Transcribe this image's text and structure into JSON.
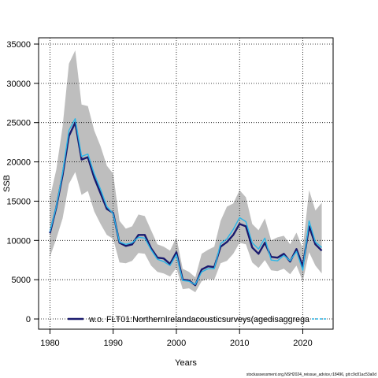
{
  "chart_data": {
    "type": "line",
    "title": "",
    "xlabel": "Years",
    "ylabel": "SSB",
    "xlim": [
      1978.2,
      2024.8
    ],
    "ylim": [
      -1300,
      35800
    ],
    "x_ticks": [
      1980,
      1990,
      2000,
      2010,
      2020
    ],
    "y_ticks": [
      0,
      5000,
      10000,
      15000,
      20000,
      25000,
      30000,
      35000
    ],
    "grid": true,
    "legend_position": "bottom",
    "legend_label": "w.o. FLT01:NorthernIrelandacousticsurveys(agedisaggrega",
    "footnote": "stockassessment.org,NSH2024_reissue_advice,r18496, git:c9c81ac53a0d",
    "colors": {
      "series_main": "#1a1a6e",
      "series_alt": "#29b6e8",
      "band": "#bebebe"
    },
    "series": [
      {
        "role": "main",
        "x": [
          1980,
          1981,
          1982,
          1983,
          1984,
          1985,
          1986,
          1987,
          1988,
          1989,
          1990,
          1991,
          1992,
          1993,
          1994,
          1995,
          1996,
          1997,
          1998,
          1999,
          2000,
          2001,
          2002,
          2003,
          2004,
          2005,
          2006,
          2007,
          2008,
          2009,
          2010,
          2011,
          2012,
          2013,
          2014,
          2015,
          2016,
          2017,
          2018,
          2019,
          2020,
          2021,
          2022,
          2023
        ],
        "y": [
          10900,
          14200,
          18300,
          23300,
          25000,
          20300,
          20600,
          18000,
          16000,
          14000,
          13500,
          9700,
          9300,
          9500,
          10700,
          10700,
          9000,
          7800,
          7700,
          7000,
          8500,
          5000,
          4900,
          4300,
          6300,
          6700,
          6600,
          9200,
          9800,
          10700,
          12100,
          11800,
          9100,
          8300,
          9700,
          7900,
          7800,
          8300,
          7300,
          8900,
          6700,
          11800,
          9500,
          8700
        ]
      },
      {
        "role": "alt",
        "x": [
          1980,
          1981,
          1982,
          1983,
          1984,
          1985,
          1986,
          1987,
          1988,
          1989,
          1990,
          1991,
          1992,
          1993,
          1994,
          1995,
          1996,
          1997,
          1998,
          1999,
          2000,
          2001,
          2002,
          2003,
          2004,
          2005,
          2006,
          2007,
          2008,
          2009,
          2010,
          2011,
          2012,
          2013,
          2014,
          2015,
          2016,
          2017,
          2018,
          2019,
          2020,
          2021,
          2022,
          2023
        ],
        "y": [
          11100,
          14300,
          18600,
          24000,
          25500,
          20700,
          21000,
          18500,
          16500,
          14300,
          13400,
          9800,
          9500,
          9700,
          10400,
          10300,
          8800,
          7600,
          7300,
          6800,
          8200,
          4900,
          4800,
          4400,
          6000,
          6400,
          6400,
          9600,
          10200,
          11400,
          12900,
          12400,
          9700,
          8900,
          10300,
          7500,
          7400,
          8100,
          7400,
          8600,
          6200,
          12500,
          9800,
          9100
        ]
      }
    ],
    "band": {
      "x": [
        1980,
        1981,
        1982,
        1983,
        1984,
        1985,
        1986,
        1987,
        1988,
        1989,
        1990,
        1991,
        1992,
        1993,
        1994,
        1995,
        1996,
        1997,
        1998,
        1999,
        2000,
        2001,
        2002,
        2003,
        2004,
        2005,
        2006,
        2007,
        2008,
        2009,
        2010,
        2011,
        2012,
        2013,
        2014,
        2015,
        2016,
        2017,
        2018,
        2019,
        2020,
        2021,
        2022,
        2023
      ],
      "upper": [
        15500,
        19000,
        24500,
        32500,
        34200,
        27300,
        27100,
        24000,
        22000,
        19500,
        18500,
        12500,
        11500,
        11800,
        13300,
        13100,
        11300,
        9500,
        9200,
        8700,
        10400,
        6400,
        6000,
        5300,
        8300,
        8800,
        9200,
        12500,
        14300,
        14700,
        16400,
        15500,
        12100,
        11300,
        12800,
        10000,
        10400,
        10600,
        9500,
        11000,
        9000,
        16400,
        13800,
        14800
      ],
      "lower": [
        7900,
        10200,
        12800,
        17200,
        18700,
        15800,
        16300,
        13700,
        12100,
        10700,
        10200,
        7200,
        7100,
        7400,
        8400,
        8300,
        6800,
        6000,
        5800,
        5400,
        6500,
        3800,
        3900,
        3400,
        4800,
        5100,
        5000,
        7100,
        7400,
        8300,
        9700,
        9500,
        7200,
        6500,
        7500,
        6200,
        6100,
        6400,
        5700,
        6800,
        4800,
        8500,
        6800,
        5800
      ]
    }
  }
}
